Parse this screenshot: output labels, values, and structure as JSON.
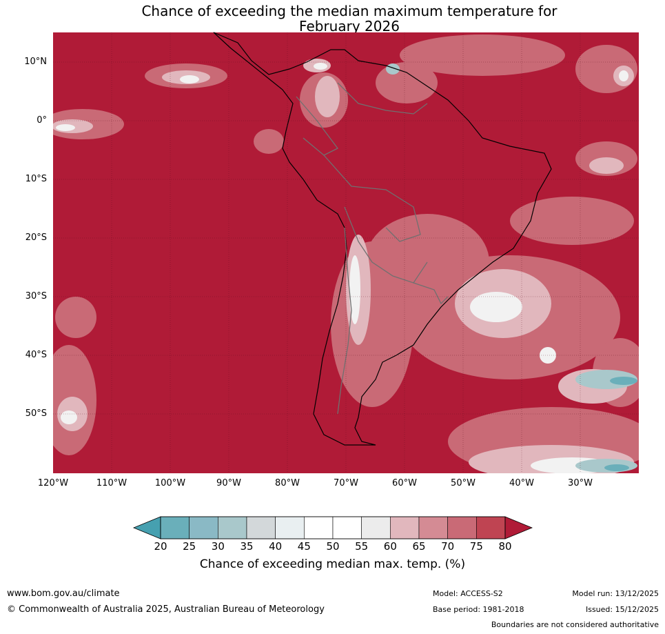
{
  "title": {
    "line1": "Chance of exceeding the median maximum temperature for",
    "line2": "February 2026"
  },
  "map": {
    "lat_labels": [
      "10°N",
      "0°",
      "10°S",
      "20°S",
      "30°S",
      "40°S",
      "50°S"
    ],
    "lon_labels": [
      "120°W",
      "110°W",
      "100°W",
      "90°W",
      "80°W",
      "70°W",
      "60°W",
      "50°W",
      "40°W",
      "30°W"
    ],
    "extent": {
      "lon_min": -120,
      "lon_max": -20,
      "lat_min": -60,
      "lat_max": 15
    },
    "background_color": "#b01b37"
  },
  "colorbar": {
    "ticks": [
      "20",
      "25",
      "30",
      "35",
      "40",
      "45",
      "50",
      "55",
      "60",
      "65",
      "70",
      "75",
      "80"
    ],
    "colors": [
      "#6aafba",
      "#8ab9c5",
      "#a9c8cb",
      "#d3d8da",
      "#e9eff1",
      "#ffffff",
      "#ffffff",
      "#ececec",
      "#e1b7bd",
      "#d48b94",
      "#c96a76",
      "#bf4452"
    ],
    "under_color": "#46a0b0",
    "over_color": "#b01b37",
    "label": "Chance of exceeding median max. temp. (%)"
  },
  "footer": {
    "website": "www.bom.gov.au/climate",
    "copyright": "© Commonwealth of Australia 2025, Australian Bureau of Meteorology",
    "model": "Model: ACCESS-S2",
    "model_run": "Model run: 13/12/2025",
    "base_period": "Base period: 1981-2018",
    "issued": "Issued: 15/12/2025",
    "disclaimer": "Boundaries are not considered authoritative"
  }
}
